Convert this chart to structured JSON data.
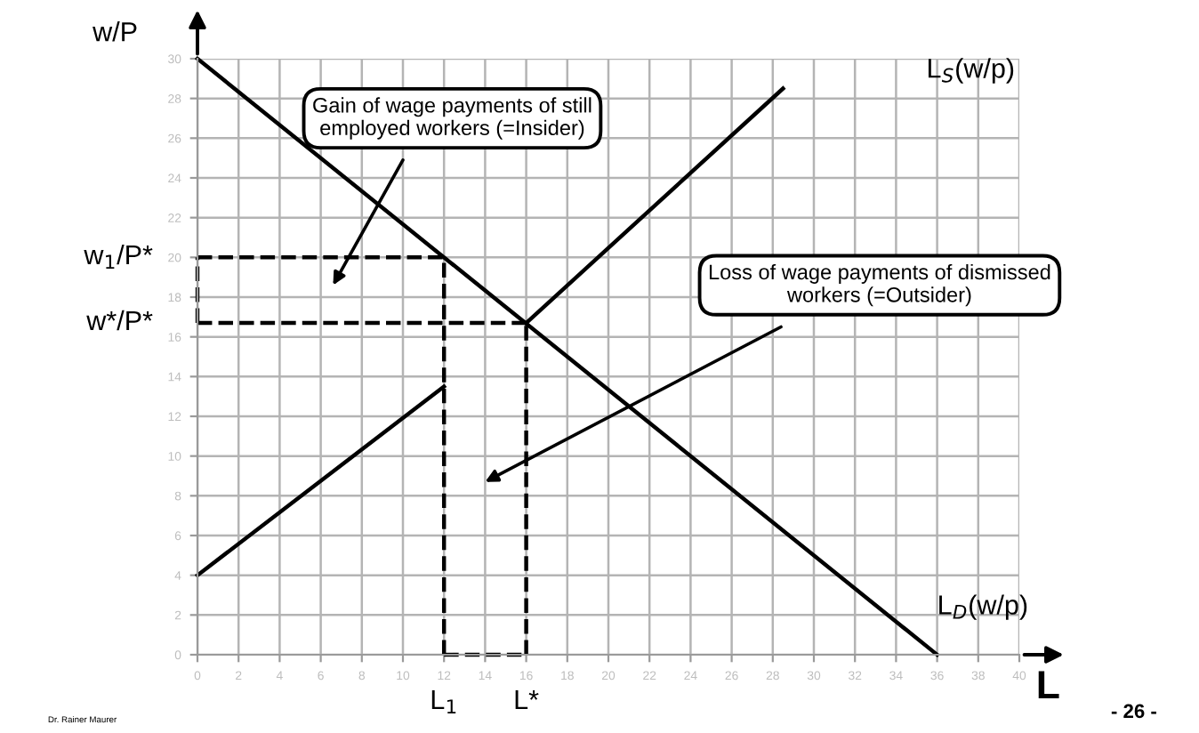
{
  "chart_data": {
    "type": "line",
    "xlabel": "L",
    "ylabel": "w/P",
    "xlim": [
      0,
      40
    ],
    "ylim": [
      0,
      30
    ],
    "xticks": [
      0,
      2,
      4,
      6,
      8,
      10,
      12,
      14,
      16,
      18,
      20,
      22,
      24,
      26,
      28,
      30,
      32,
      34,
      36,
      38,
      40
    ],
    "yticks": [
      0,
      2,
      4,
      6,
      8,
      10,
      12,
      14,
      16,
      18,
      20,
      22,
      24,
      26,
      28,
      30
    ],
    "grid": true,
    "line_style": "solid",
    "series": [
      {
        "name": "L$_{S}$(w/p)",
        "color": "#000000",
        "x": [
          0,
          12,
          14,
          16,
          28.5
        ],
        "values": [
          4,
          13.5,
          null,
          16.7,
          28.5
        ]
      },
      {
        "name": "L$_{D}$(w/p)",
        "color": "#000000",
        "x": [
          0,
          36
        ],
        "values": [
          30,
          0
        ]
      },
      {
        "color": "#000000",
        "line_style": "dashed",
        "x": [
          0,
          12
        ],
        "values": [
          20,
          20
        ]
      },
      {
        "color": "#000000",
        "line_style": "dashed",
        "x": [
          0,
          16
        ],
        "values": [
          16.7,
          16.7
        ]
      },
      {
        "color": "#000000",
        "line_style": "dashed",
        "x": [
          12,
          16
        ],
        "values": [
          0,
          0
        ]
      },
      {
        "color": "#000000",
        "line_style": "dashed",
        "x": [
          0,
          0
        ],
        "values": [
          16.7,
          20
        ]
      },
      {
        "color": "#000000",
        "line_style": "dashed",
        "x": [
          12,
          12
        ],
        "values": [
          0,
          20
        ]
      },
      {
        "color": "#000000",
        "line_style": "dashed",
        "x": [
          16,
          16
        ],
        "values": [
          0,
          16.7
        ]
      }
    ],
    "annotations": [
      {
        "text": "w$_{1}$/P*",
        "x": 0,
        "y": 20
      },
      {
        "text": "w*/P*",
        "x": 0,
        "y": 16.7
      },
      {
        "text": "L$_{1}$",
        "x": 12,
        "y": 0
      },
      {
        "text": "L*",
        "x": 16,
        "y": 0
      },
      "Gain of wage payments of still\nemployed workers (=Insider)",
      "Loss of wage payments of dismissed\nworkers (=Outsider)",
      "- 26 -",
      "Dr. Rainer Maurer"
    ]
  }
}
